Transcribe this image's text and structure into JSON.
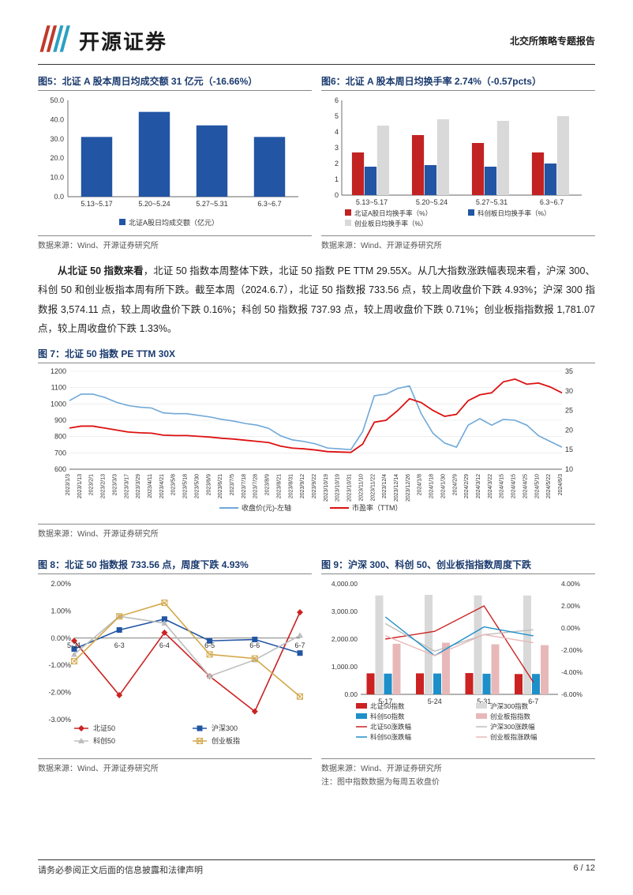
{
  "header": {
    "company": "开源证券",
    "report_type": "北交所策略专题报告"
  },
  "chart5": {
    "title": "图5：北证 A 股本周日均成交额 31 亿元（-16.66%）",
    "type": "bar",
    "categories": [
      "5.13~5.17",
      "5.20~5.24",
      "5.27~5.31",
      "6.3~6.7"
    ],
    "values": [
      31,
      44,
      37,
      31
    ],
    "bar_color": "#2255a4",
    "ylim": [
      0,
      50
    ],
    "ytick": [
      0.0,
      10.0,
      20.0,
      30.0,
      40.0,
      50.0
    ],
    "legend": "北证A股日均成交额（亿元）",
    "source": "数据来源：Wind、开源证券研究所"
  },
  "chart6": {
    "title": "图6：北证 A 股本周日均换手率 2.74%（-0.57pcts）",
    "type": "grouped-bar",
    "categories": [
      "5.13~5.17",
      "5.20~5.24",
      "5.27~5.31",
      "6.3~6.7"
    ],
    "series": [
      {
        "name": "北证A股日均换手率（%）",
        "color": "#c22222",
        "values": [
          2.7,
          3.8,
          3.3,
          2.7
        ]
      },
      {
        "name": "科创板日均换手率（%）",
        "color": "#2255a4",
        "values": [
          1.8,
          1.9,
          1.8,
          2.0
        ]
      },
      {
        "name": "创业板日均换手率（%）",
        "color": "#d9d9d9",
        "values": [
          4.4,
          4.8,
          4.7,
          5.0
        ]
      }
    ],
    "ylim": [
      0,
      6
    ],
    "ytick": [
      0,
      1,
      2,
      3,
      4,
      5,
      6
    ],
    "source": "数据来源：Wind、开源证券研究所"
  },
  "body_text": "从北证 50 指数来看，北证 50 指数本周整体下跌，北证 50 指数 PE TTM 29.55X。从几大指数涨跌幅表现来看，沪深 300、科创 50 和创业板指本周有所下跌。截至本周（2024.6.7），北证 50 指数报 733.56 点，较上周收盘价下跌 4.93%；沪深 300 指数报 3,574.11 点，较上周收盘价下跌 0.16%；科创 50 指数报 737.93 点，较上周收盘价下跌 0.71%；创业板指指数报 1,781.07 点，较上周收盘价下跌 1.33%。",
  "body_bold": "从北证 50 指数来看",
  "chart7": {
    "title": "图 7：北证 50 指数 PE TTM 30X",
    "type": "dual-line",
    "y1lim": [
      600,
      1200
    ],
    "y1tick": [
      600,
      700,
      800,
      900,
      1000,
      1100,
      1200
    ],
    "y2lim": [
      10,
      35
    ],
    "y2tick": [
      10,
      15,
      20,
      25,
      30,
      35
    ],
    "series": [
      {
        "name": "收盘价(元)-左轴",
        "color": "#6fa8d8",
        "axis": "left"
      },
      {
        "name": "市盈率（TTM）",
        "color": "#d11",
        "axis": "right"
      }
    ],
    "xlabels": [
      "2023/1/3",
      "2023/1/13",
      "2023/2/1",
      "2023/2/13",
      "2023/3/3",
      "2023/3/17",
      "2023/3/29",
      "2023/4/11",
      "2023/4/21",
      "2023/5/8",
      "2023/5/18",
      "2023/5/30",
      "2023/6/9",
      "2023/6/21",
      "2023/7/5",
      "2023/7/18",
      "2023/7/28",
      "2023/8/9",
      "2023/8/21",
      "2023/8/31",
      "2023/9/12",
      "2023/9/22",
      "2023/10/19",
      "2023/10/19",
      "2023/10/31",
      "2023/11/10",
      "2023/11/22",
      "2023/12/4",
      "2023/12/14",
      "2023/12/26",
      "2024/1/8",
      "2024/1/18",
      "2024/1/30",
      "2024/2/9",
      "2024/2/29",
      "2024/3/12",
      "2024/3/22",
      "2024/4/15",
      "2024/4/15",
      "2024/4/25",
      "2024/5/10",
      "2024/5/22",
      "2024/6/3"
    ],
    "line1": [
      1020,
      1060,
      1060,
      1040,
      1010,
      990,
      980,
      975,
      945,
      940,
      940,
      930,
      920,
      905,
      895,
      880,
      870,
      850,
      805,
      780,
      770,
      755,
      730,
      725,
      720,
      830,
      1050,
      1060,
      1095,
      1110,
      940,
      820,
      760,
      735,
      870,
      910,
      870,
      905,
      900,
      870,
      805,
      770,
      735
    ],
    "line2": [
      20.5,
      21.0,
      21.0,
      20.5,
      20.0,
      19.5,
      19.3,
      19.2,
      18.7,
      18.6,
      18.6,
      18.4,
      18.2,
      17.9,
      17.7,
      17.4,
      17.1,
      16.8,
      15.9,
      15.4,
      15.2,
      14.9,
      14.5,
      14.4,
      14.3,
      16.4,
      22.0,
      22.5,
      25.0,
      28.0,
      27.0,
      25.0,
      23.5,
      24.0,
      27.5,
      29.0,
      29.5,
      32.3,
      33.0,
      31.7,
      32.0,
      31.0,
      29.5
    ],
    "source": "数据来源：Wind、开源证券研究所"
  },
  "chart8": {
    "title": "图 8：北证 50 指数报 733.56 点，周度下跌 4.93%",
    "type": "line-markers",
    "categories": [
      "5-31",
      "6-3",
      "6-4",
      "6-5",
      "6-6",
      "6-7"
    ],
    "ylim": [
      -3.0,
      2.0
    ],
    "ytick": [
      "-3.00%",
      "-2.00%",
      "-1.00%",
      "0.00%",
      "1.00%",
      "2.00%"
    ],
    "series": [
      {
        "name": "北证50",
        "color": "#c22",
        "marker": "diamond",
        "values": [
          -0.1,
          -2.1,
          0.2,
          -1.4,
          -2.7,
          0.95
        ]
      },
      {
        "name": "沪深300",
        "color": "#2255a4",
        "marker": "square",
        "values": [
          -0.4,
          0.3,
          0.7,
          -0.1,
          -0.05,
          -0.55
        ]
      },
      {
        "name": "科创50",
        "color": "#bdbdbd",
        "marker": "triangle",
        "values": [
          -0.6,
          0.8,
          0.55,
          -1.4,
          -0.8,
          0.1
        ]
      },
      {
        "name": "创业板指",
        "color": "#d4a84a",
        "marker": "xsquare",
        "values": [
          -0.85,
          0.8,
          1.3,
          -0.6,
          -0.75,
          -2.15
        ]
      }
    ],
    "source": "数据来源：Wind、开源证券研究所"
  },
  "chart9": {
    "title": "图 9：沪深 300、科创 50、创业板指指数周度下跌",
    "type": "bar-line-dual",
    "categories": [
      "5-17",
      "5-24",
      "5-31",
      "6-7"
    ],
    "y1lim": [
      0,
      4000
    ],
    "y1tick": [
      "0.00",
      "1,000.00",
      "2,000.00",
      "3,000.00",
      "4,000.00"
    ],
    "y2lim": [
      -6,
      4
    ],
    "y2tick": [
      "-6.00%",
      "-4.00%",
      "-2.00%",
      "0.00%",
      "2.00%",
      "4.00%"
    ],
    "bar_series": [
      {
        "name": "北证50指数",
        "color": "#c22",
        "values": [
          760,
          760,
          770,
          735
        ]
      },
      {
        "name": "沪深300指数",
        "color": "#d9d9d9",
        "values": [
          3580,
          3600,
          3580,
          3575
        ]
      },
      {
        "name": "科创50指数",
        "color": "#1d8fc9",
        "values": [
          750,
          755,
          745,
          738
        ]
      },
      {
        "name": "创业板指指数",
        "color": "#e8b8b8",
        "values": [
          1830,
          1870,
          1810,
          1780
        ]
      }
    ],
    "line_series": [
      {
        "name": "北证50涨跌幅",
        "color": "#c22",
        "values": [
          -1.0,
          -0.3,
          2.0,
          -4.9
        ]
      },
      {
        "name": "沪深300涨跌幅",
        "color": "#bdbdbd",
        "values": [
          0.4,
          -2.1,
          -0.6,
          -0.16
        ]
      },
      {
        "name": "科创50涨跌幅",
        "color": "#1d8fc9",
        "values": [
          1.0,
          -2.5,
          0.1,
          -0.71
        ]
      },
      {
        "name": "创业板指涨跌幅",
        "color": "#e8b8b8",
        "values": [
          -0.7,
          -2.5,
          -0.6,
          -1.33
        ]
      }
    ],
    "source": "数据来源：Wind、开源证券研究所",
    "note": "注：图中指数数据为每周五收盘价"
  },
  "footer": {
    "left": "请务必参阅正文后面的信息披露和法律声明",
    "right": "6 / 12"
  }
}
